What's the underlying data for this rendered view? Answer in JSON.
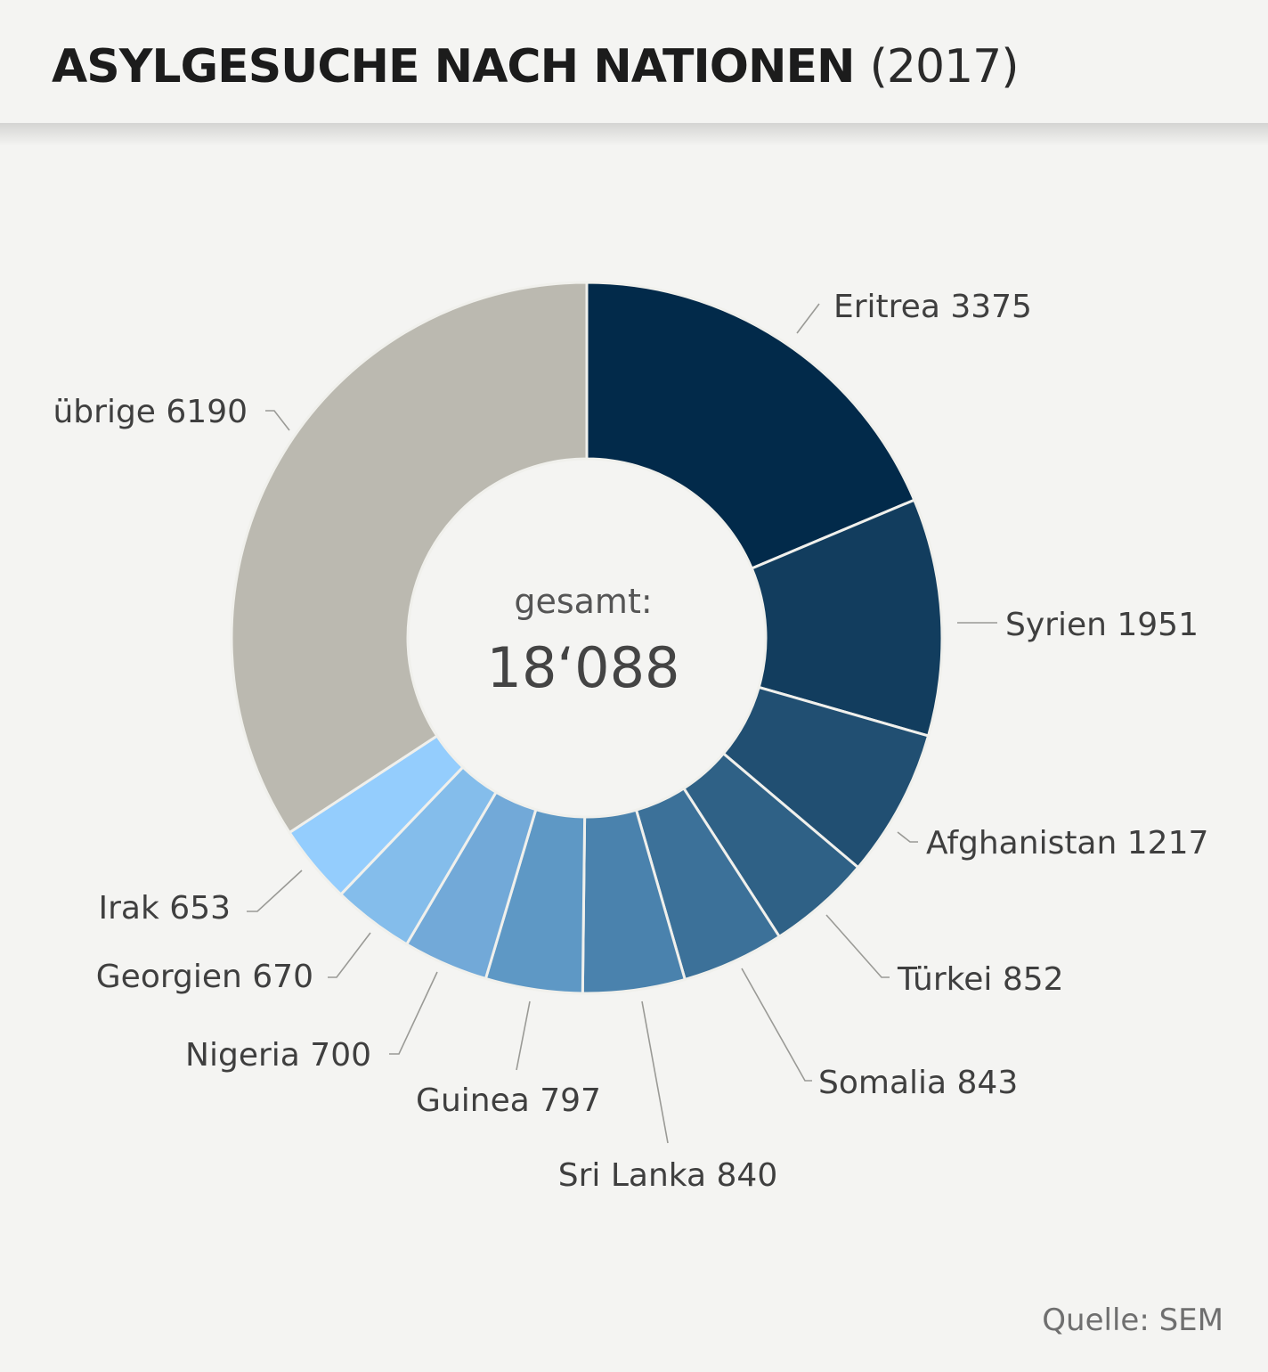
{
  "header": {
    "title_main": "ASYLGESUCHE NACH NATIONEN",
    "title_year": "(2017)"
  },
  "center": {
    "label": "gesamt:",
    "value": "18‘088"
  },
  "source": "Quelle: SEM",
  "chart_data": {
    "type": "pie",
    "variant": "donut",
    "title": "ASYLGESUCHE NACH NATIONEN (2017)",
    "total": 18088,
    "segments": [
      {
        "label": "Eritrea",
        "value": 3375,
        "value_text": "3375",
        "color": "#022a4a"
      },
      {
        "label": "Syrien",
        "value": 1951,
        "value_text": "1951",
        "color": "#123d5e"
      },
      {
        "label": "Afghanistan",
        "value": 1217,
        "value_text": "1217",
        "color": "#214f72"
      },
      {
        "label": "Türkei",
        "value": 852,
        "value_text": "852",
        "color": "#2f6186"
      },
      {
        "label": "Somalia",
        "value": 843,
        "value_text": "843",
        "color": "#3c7199"
      },
      {
        "label": "Sri Lanka",
        "value": 840,
        "value_text": "840",
        "color": "#4a82ad"
      },
      {
        "label": "Guinea",
        "value": 797,
        "value_text": "797",
        "color": "#5e98c5"
      },
      {
        "label": "Nigeria",
        "value": 700,
        "value_text": "700",
        "color": "#72a9d8"
      },
      {
        "label": "Georgien",
        "value": 670,
        "value_text": "670",
        "color": "#84bdeb"
      },
      {
        "label": "Irak",
        "value": 653,
        "value_text": "653",
        "color": "#94cdfd"
      },
      {
        "label": "übrige",
        "value": 6190,
        "value_text": "6190",
        "color": "#bbb9b0"
      }
    ]
  }
}
